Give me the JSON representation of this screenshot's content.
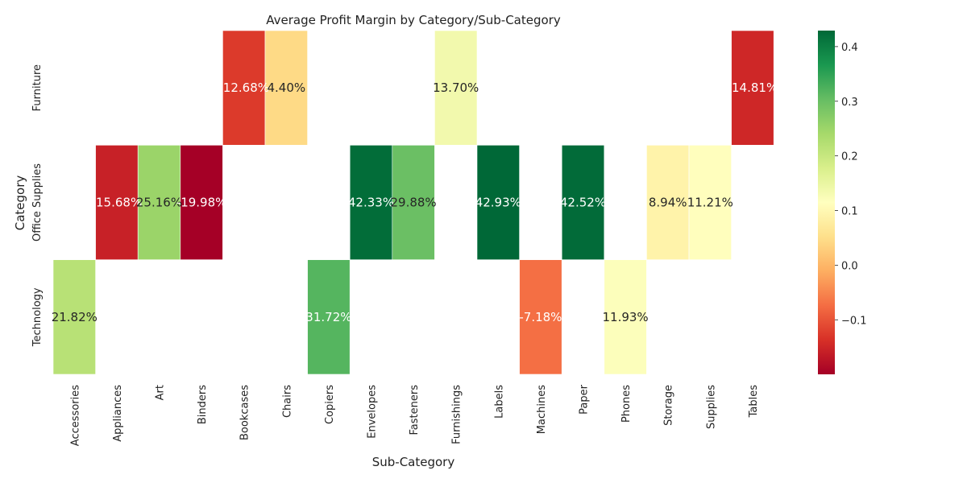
{
  "chart_data": {
    "type": "heatmap",
    "title": "Average Profit Margin by Category/Sub-Category",
    "xlabel": "Sub-Category",
    "ylabel": "Category",
    "x_categories": [
      "Accessories",
      "Appliances",
      "Art",
      "Binders",
      "Bookcases",
      "Chairs",
      "Copiers",
      "Envelopes",
      "Fasteners",
      "Furnishings",
      "Labels",
      "Machines",
      "Paper",
      "Phones",
      "Storage",
      "Supplies",
      "Tables"
    ],
    "y_categories": [
      "Furniture",
      "Office Supplies",
      "Technology"
    ],
    "cells": [
      {
        "row": "Furniture",
        "col": "Bookcases",
        "value": -0.1268,
        "label": "-12.68%"
      },
      {
        "row": "Furniture",
        "col": "Chairs",
        "value": 0.044,
        "label": "4.40%"
      },
      {
        "row": "Furniture",
        "col": "Furnishings",
        "value": 0.137,
        "label": "13.70%"
      },
      {
        "row": "Furniture",
        "col": "Tables",
        "value": -0.1481,
        "label": "-14.81%"
      },
      {
        "row": "Office Supplies",
        "col": "Appliances",
        "value": -0.1568,
        "label": "-15.68%"
      },
      {
        "row": "Office Supplies",
        "col": "Art",
        "value": 0.2516,
        "label": "25.16%"
      },
      {
        "row": "Office Supplies",
        "col": "Binders",
        "value": -0.1998,
        "label": "-19.98%"
      },
      {
        "row": "Office Supplies",
        "col": "Envelopes",
        "value": 0.4233,
        "label": "42.33%"
      },
      {
        "row": "Office Supplies",
        "col": "Fasteners",
        "value": 0.2988,
        "label": "29.88%"
      },
      {
        "row": "Office Supplies",
        "col": "Labels",
        "value": 0.4293,
        "label": "42.93%"
      },
      {
        "row": "Office Supplies",
        "col": "Paper",
        "value": 0.4252,
        "label": "42.52%"
      },
      {
        "row": "Office Supplies",
        "col": "Storage",
        "value": 0.0894,
        "label": "8.94%"
      },
      {
        "row": "Office Supplies",
        "col": "Supplies",
        "value": 0.1121,
        "label": "11.21%"
      },
      {
        "row": "Technology",
        "col": "Accessories",
        "value": 0.2182,
        "label": "21.82%"
      },
      {
        "row": "Technology",
        "col": "Copiers",
        "value": 0.3172,
        "label": "31.72%"
      },
      {
        "row": "Technology",
        "col": "Machines",
        "value": -0.0718,
        "label": "-7.18%"
      },
      {
        "row": "Technology",
        "col": "Phones",
        "value": 0.1193,
        "label": "11.93%"
      }
    ],
    "colorbar": {
      "colormap": "RdYlGn",
      "vmin": -0.1998,
      "vmax": 0.4293,
      "ticks": [
        -0.1,
        0.0,
        0.1,
        0.2,
        0.3,
        0.4
      ],
      "tick_labels": [
        "−0.1",
        "0.0",
        "0.1",
        "0.2",
        "0.3",
        "0.4"
      ]
    },
    "grid": false
  }
}
